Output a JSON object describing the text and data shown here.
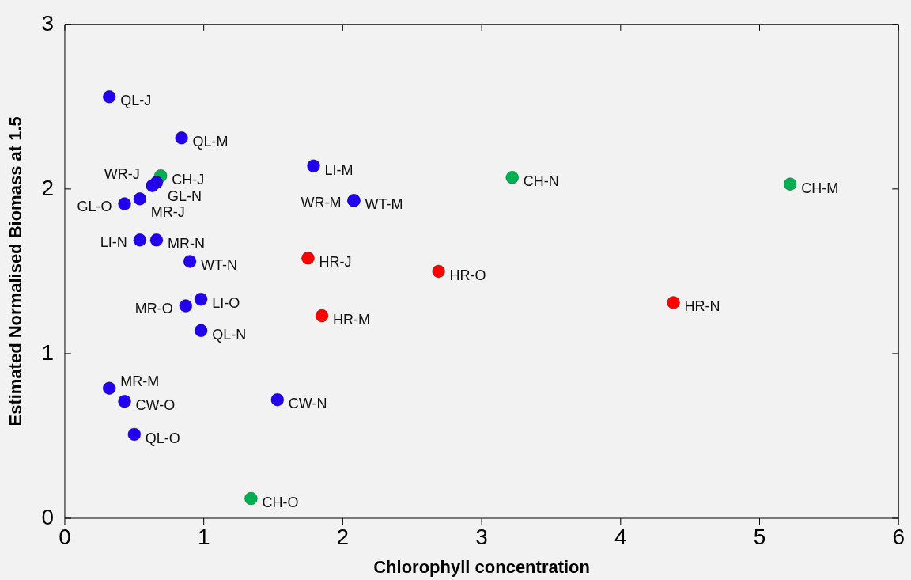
{
  "chart_data": {
    "type": "scatter",
    "xlabel": "Chlorophyll concentration",
    "ylabel": "Estimated Normalised Biomass at 1.5",
    "xlim": [
      0,
      6
    ],
    "xticks": [
      0,
      1,
      2,
      3,
      4,
      5,
      6
    ],
    "ylim": [
      0,
      3
    ],
    "yticks": [
      0,
      1,
      2,
      3
    ],
    "grid": false,
    "legend": false,
    "marker": "circle",
    "series": [
      {
        "color": "#2200ee",
        "x": [
          0.32,
          0.84,
          0.66,
          0.63,
          0.54,
          0.43,
          0.54,
          0.66,
          0.9,
          0.98,
          0.87,
          0.98,
          1.79,
          2.08,
          2.08,
          0.32,
          0.43,
          1.53,
          0.5
        ],
        "values": [
          2.56,
          2.31,
          2.04,
          2.02,
          1.94,
          1.91,
          1.69,
          1.69,
          1.56,
          1.33,
          1.29,
          1.14,
          2.14,
          1.93,
          1.93,
          0.79,
          0.71,
          0.72,
          0.51
        ],
        "value_labels": [
          "QL-J",
          "QL-M",
          "GL-N",
          "WR-J",
          "MR-J",
          "GL-O",
          "LI-N",
          "MR-N",
          "WT-N",
          "LI-O",
          "MR-O",
          "QL-N",
          "LI-M",
          "WT-M",
          "WR-M",
          "MR-M",
          "CW-O",
          "CW-N",
          "QL-O"
        ]
      },
      {
        "color": "#ff0000",
        "x": [
          1.75,
          2.69,
          1.85,
          4.38
        ],
        "values": [
          1.58,
          1.5,
          1.23,
          1.31
        ],
        "value_labels": [
          "HR-J",
          "HR-O",
          "HR-M",
          "HR-N"
        ]
      },
      {
        "color": "#00b050",
        "x": [
          0.69,
          3.22,
          5.22,
          1.34
        ],
        "values": [
          2.08,
          2.07,
          2.03,
          0.12
        ],
        "value_labels": [
          "CH-J",
          "CH-N",
          "CH-M",
          "CH-O"
        ]
      }
    ]
  }
}
